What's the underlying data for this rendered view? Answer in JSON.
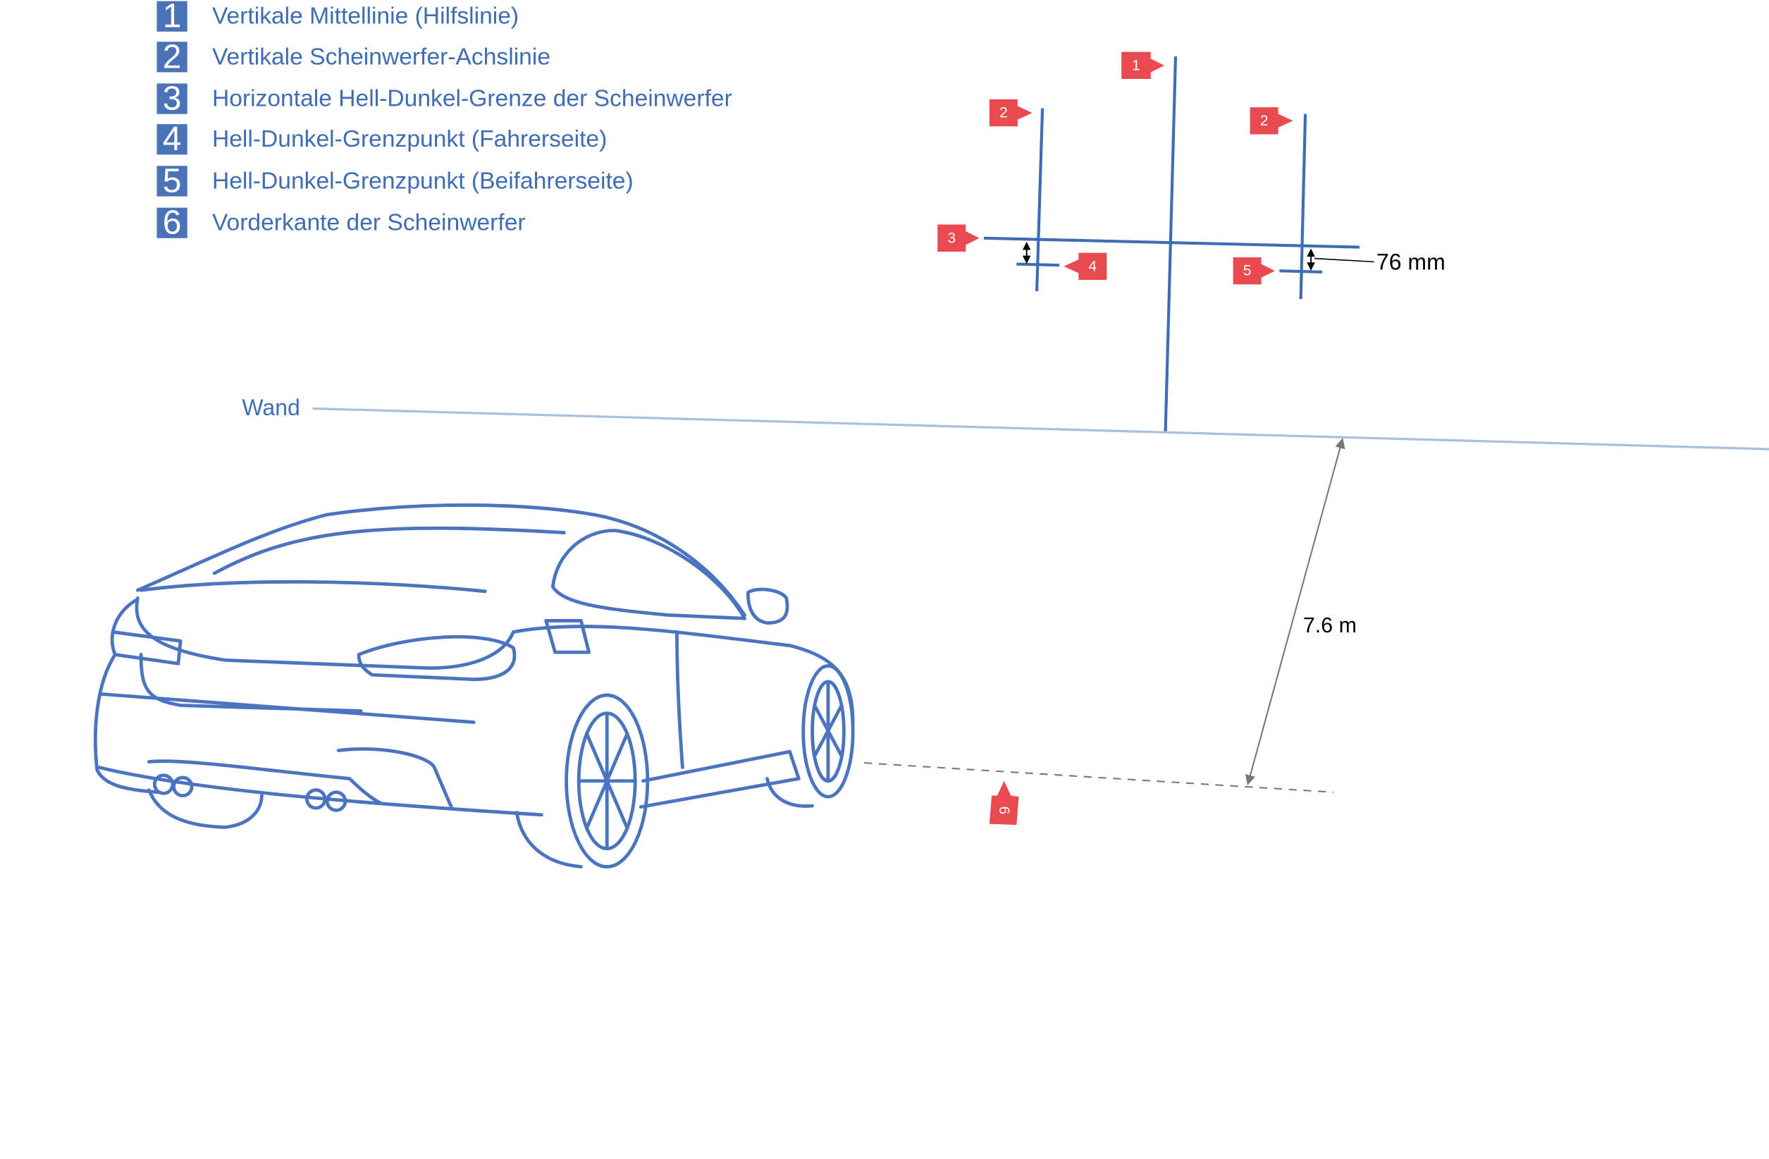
{
  "colors": {
    "accent_blue": "#4a72b8",
    "text_blue": "#3f6db5",
    "marker_red": "#e84a4f",
    "wall_line": "#a9bfdc",
    "dim_gray": "#777777"
  },
  "legend": [
    {
      "num": "1",
      "label": "Vertikale Mittellinie (Hilfslinie)"
    },
    {
      "num": "2",
      "label": "Vertikale Scheinwerfer-Achslinie"
    },
    {
      "num": "3",
      "label": "Horizontale Hell-Dunkel-Grenze der Scheinwerfer"
    },
    {
      "num": "4",
      "label": "Hell-Dunkel-Grenzpunkt (Fahrerseite)"
    },
    {
      "num": "5",
      "label": "Hell-Dunkel-Grenzpunkt (Beifahrerseite)"
    },
    {
      "num": "6",
      "label": "Vorderkante der Scheinwerfer"
    }
  ],
  "labels": {
    "wall": "Wand",
    "offset": "76 mm",
    "distance": "7.6 m"
  },
  "markers": {
    "m1": "1",
    "m2a": "2",
    "m2b": "2",
    "m3": "3",
    "m4": "4",
    "m5": "5",
    "m6": "6"
  }
}
